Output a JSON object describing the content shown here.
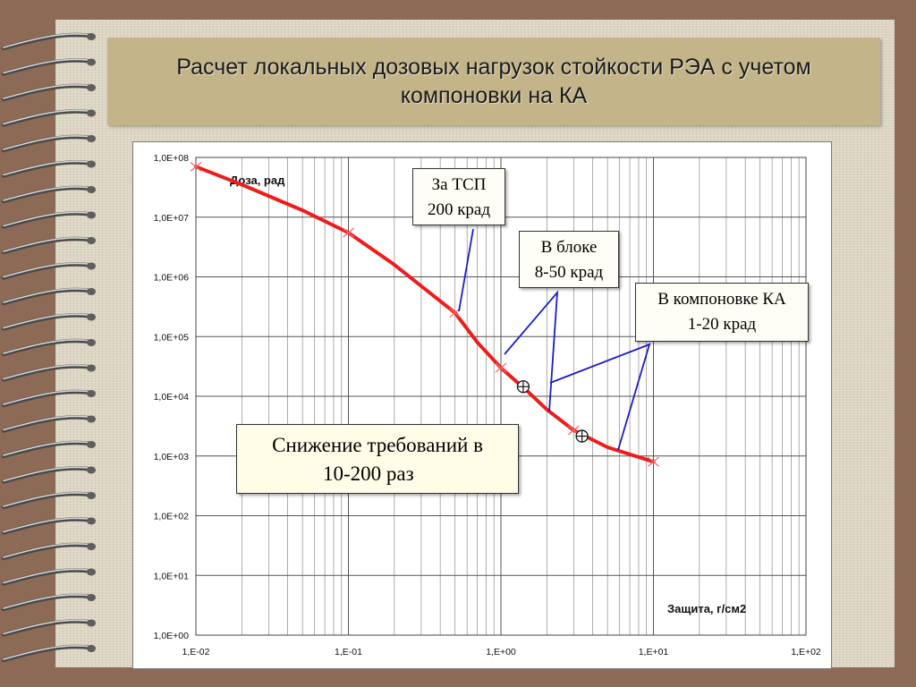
{
  "title": {
    "line1": "Расчет локальных дозовых нагрузок стойкости РЭА с учетом",
    "line2": "компоновки на КА"
  },
  "chart_data": {
    "type": "line",
    "x_scale": "log",
    "y_scale": "log",
    "xlim": [
      0.01,
      100
    ],
    "ylim": [
      1,
      100000000
    ],
    "ylabel": "Доза, рад",
    "xlabel": "Защита, г/см2",
    "x_ticks": [
      "1,E-02",
      "1,E-01",
      "1,E+00",
      "1,E+01",
      "1,E+02"
    ],
    "y_ticks": [
      "1,0E+00",
      "1,0E+01",
      "1,0E+02",
      "1,0E+03",
      "1,0E+04",
      "1,0E+05",
      "1,0E+06",
      "1,0E+07",
      "1,0E+08"
    ],
    "grid": true,
    "series": [
      {
        "color": "#ee1c1c",
        "x": [
          0.01,
          0.02,
          0.05,
          0.1,
          0.2,
          0.5,
          0.7,
          1.0,
          1.5,
          2.0,
          3.0,
          5.0,
          10.0
        ],
        "y": [
          70000000,
          35000000,
          13000000,
          5500000,
          1600000,
          250000,
          80000,
          30000,
          12000,
          6000,
          2700,
          1400,
          800
        ],
        "markers": [
          0.01,
          0.1,
          0.5,
          1.0,
          3.0,
          10.0
        ]
      }
    ],
    "design_points": [
      {
        "x": 1.4,
        "y": 14500
      },
      {
        "x": 3.4,
        "y": 2150
      }
    ],
    "leader_color": "#1c1ccc"
  },
  "callouts": {
    "tsp": {
      "line1": "За ТСП",
      "line2": "200 крад"
    },
    "block": {
      "line1": "В блоке",
      "line2": "8-50 крад"
    },
    "ka": {
      "line1": "В компоновке КА",
      "line2": "1-20 крад"
    },
    "reduction": {
      "line1": "Снижение требований в",
      "line2": "10-200 раз"
    }
  }
}
